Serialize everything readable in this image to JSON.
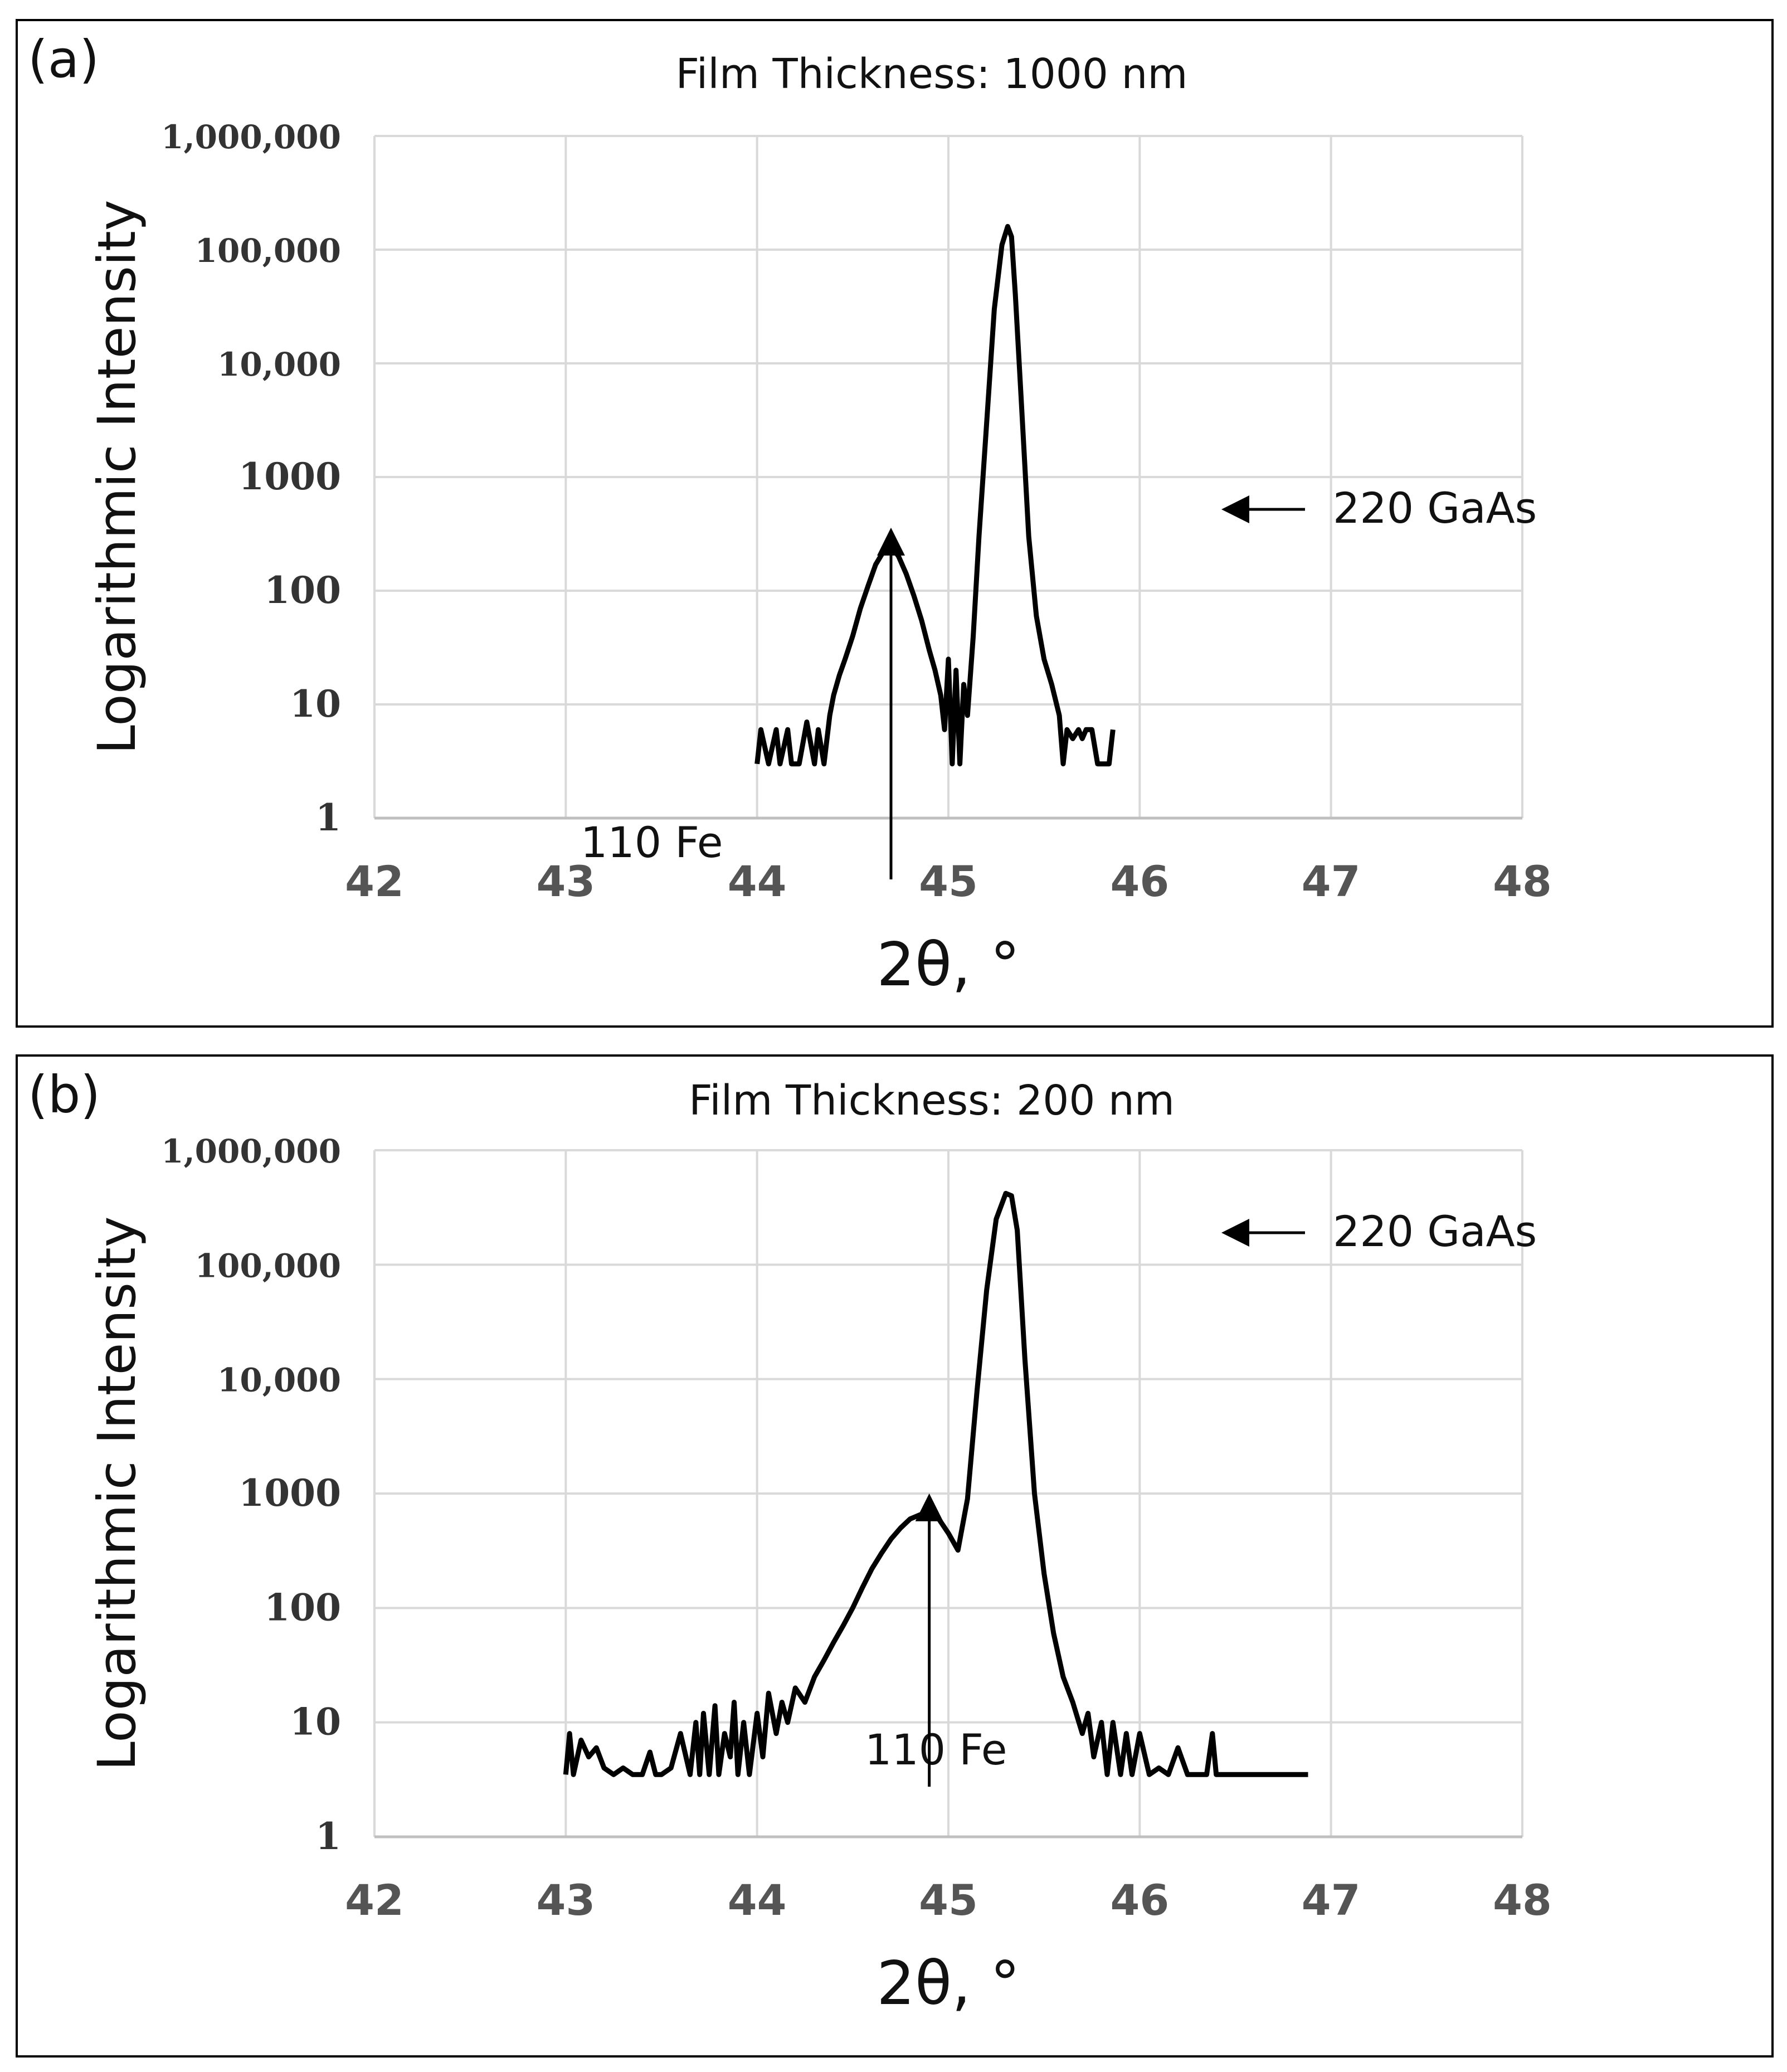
{
  "chart_data": [
    {
      "type": "line",
      "panel_label": "(a)",
      "title": "Film Thickness: 1000 nm",
      "xlabel": "2θ, °",
      "ylabel": "Logarithmic Intensity",
      "yscale": "log",
      "xlim": [
        42,
        48
      ],
      "ylim": [
        1,
        1000000
      ],
      "xticks": [
        42,
        43,
        44,
        45,
        46,
        47,
        48
      ],
      "xtick_labels": [
        "42",
        "43",
        "44",
        "45",
        "46",
        "47",
        "48"
      ],
      "yticks": [
        1,
        10,
        100,
        1000,
        10000,
        100000,
        1000000
      ],
      "ytick_labels": [
        "1",
        "10",
        "100",
        "1000",
        "10,000",
        "100,000",
        "1,000,000"
      ],
      "grid": true,
      "annotations": [
        {
          "text": "110 Fe",
          "x": 44.7,
          "y": 250,
          "arrow": "down"
        },
        {
          "text": "220 GaAs",
          "x": 45.33,
          "y": 14000,
          "arrow": "left"
        }
      ],
      "series": [
        {
          "name": "1000 nm film",
          "x": [
            44.0,
            44.02,
            44.06,
            44.1,
            44.12,
            44.16,
            44.18,
            44.22,
            44.26,
            44.3,
            44.32,
            44.35,
            44.38,
            44.4,
            44.43,
            44.46,
            44.5,
            44.54,
            44.58,
            44.62,
            44.66,
            44.7,
            44.74,
            44.78,
            44.82,
            44.86,
            44.9,
            44.93,
            44.96,
            44.98,
            45.0,
            45.02,
            45.04,
            45.06,
            45.08,
            45.1,
            45.13,
            45.16,
            45.2,
            45.24,
            45.28,
            45.31,
            45.33,
            45.35,
            45.38,
            45.42,
            45.46,
            45.5,
            45.54,
            45.58,
            45.6,
            45.62,
            45.65,
            45.68,
            45.7,
            45.72,
            45.75,
            45.78,
            45.8,
            45.84,
            45.86
          ],
          "y": [
            3,
            6,
            3,
            6,
            3,
            6,
            3,
            3,
            7,
            3,
            6,
            3,
            8,
            12,
            18,
            25,
            40,
            70,
            110,
            170,
            220,
            250,
            200,
            140,
            90,
            55,
            30,
            20,
            12,
            6,
            25,
            3,
            20,
            3,
            15,
            8,
            40,
            300,
            3000,
            30000,
            110000,
            160000,
            130000,
            40000,
            5000,
            300,
            60,
            25,
            15,
            8,
            3,
            6,
            5,
            6,
            5,
            6,
            6,
            3,
            3,
            3,
            6
          ]
        }
      ]
    },
    {
      "type": "line",
      "panel_label": "(b)",
      "title": "Film Thickness: 200 nm",
      "xlabel": "2θ, °",
      "ylabel": "Logarithmic Intensity",
      "yscale": "log",
      "xlim": [
        42,
        48
      ],
      "ylim": [
        1,
        1000000
      ],
      "xticks": [
        42,
        43,
        44,
        45,
        46,
        47,
        48
      ],
      "xtick_labels": [
        "42",
        "43",
        "44",
        "45",
        "46",
        "47",
        "48"
      ],
      "yticks": [
        1,
        10,
        100,
        1000,
        10000,
        100000,
        1000000
      ],
      "ytick_labels": [
        "1",
        "10",
        "100",
        "1000",
        "10,000",
        "100,000",
        "1,000,000"
      ],
      "grid": true,
      "annotations": [
        {
          "text": "110 Fe",
          "x": 44.9,
          "y": 700,
          "arrow": "down"
        },
        {
          "text": "220 GaAs",
          "x": 45.33,
          "y": 12000,
          "arrow": "left"
        }
      ],
      "series": [
        {
          "name": "200 nm film",
          "x": [
            43.0,
            43.02,
            43.04,
            43.08,
            43.12,
            43.16,
            43.2,
            43.25,
            43.3,
            43.35,
            43.4,
            43.44,
            43.47,
            43.5,
            43.55,
            43.6,
            43.65,
            43.68,
            43.7,
            43.72,
            43.75,
            43.78,
            43.8,
            43.83,
            43.86,
            43.88,
            43.9,
            43.93,
            43.96,
            44.0,
            44.03,
            44.06,
            44.1,
            44.13,
            44.16,
            44.2,
            44.25,
            44.3,
            44.35,
            44.4,
            44.45,
            44.5,
            44.55,
            44.6,
            44.65,
            44.7,
            44.75,
            44.8,
            44.85,
            44.9,
            44.95,
            45.0,
            45.05,
            45.1,
            45.15,
            45.2,
            45.25,
            45.3,
            45.33,
            45.36,
            45.4,
            45.45,
            45.5,
            45.55,
            45.6,
            45.65,
            45.7,
            45.73,
            45.76,
            45.8,
            45.83,
            45.86,
            45.9,
            45.93,
            45.96,
            46.0,
            46.05,
            46.1,
            46.15,
            46.2,
            46.25,
            46.3,
            46.35,
            46.38,
            46.4,
            46.42,
            46.5,
            46.6,
            46.7,
            46.8,
            46.88
          ],
          "y": [
            3.5,
            8,
            3.5,
            7,
            5,
            6,
            4,
            3.5,
            4,
            3.5,
            3.5,
            5.5,
            3.5,
            3.5,
            4,
            8,
            3.5,
            10,
            3.5,
            12,
            3.5,
            14,
            3.5,
            8,
            5,
            15,
            3.5,
            10,
            3.5,
            12,
            5,
            18,
            8,
            15,
            10,
            20,
            15,
            25,
            35,
            50,
            70,
            100,
            150,
            220,
            300,
            400,
            500,
            600,
            650,
            700,
            600,
            450,
            320,
            900,
            8000,
            60000,
            250000,
            420000,
            400000,
            200000,
            15000,
            1000,
            200,
            60,
            25,
            15,
            8,
            12,
            5,
            10,
            3.5,
            10,
            3.5,
            8,
            3.5,
            8,
            3.5,
            4,
            3.5,
            6,
            3.5,
            3.5,
            3.5,
            8,
            3.5,
            3.5,
            3.5,
            3.5,
            3.5,
            3.5,
            3.5
          ]
        }
      ]
    }
  ]
}
